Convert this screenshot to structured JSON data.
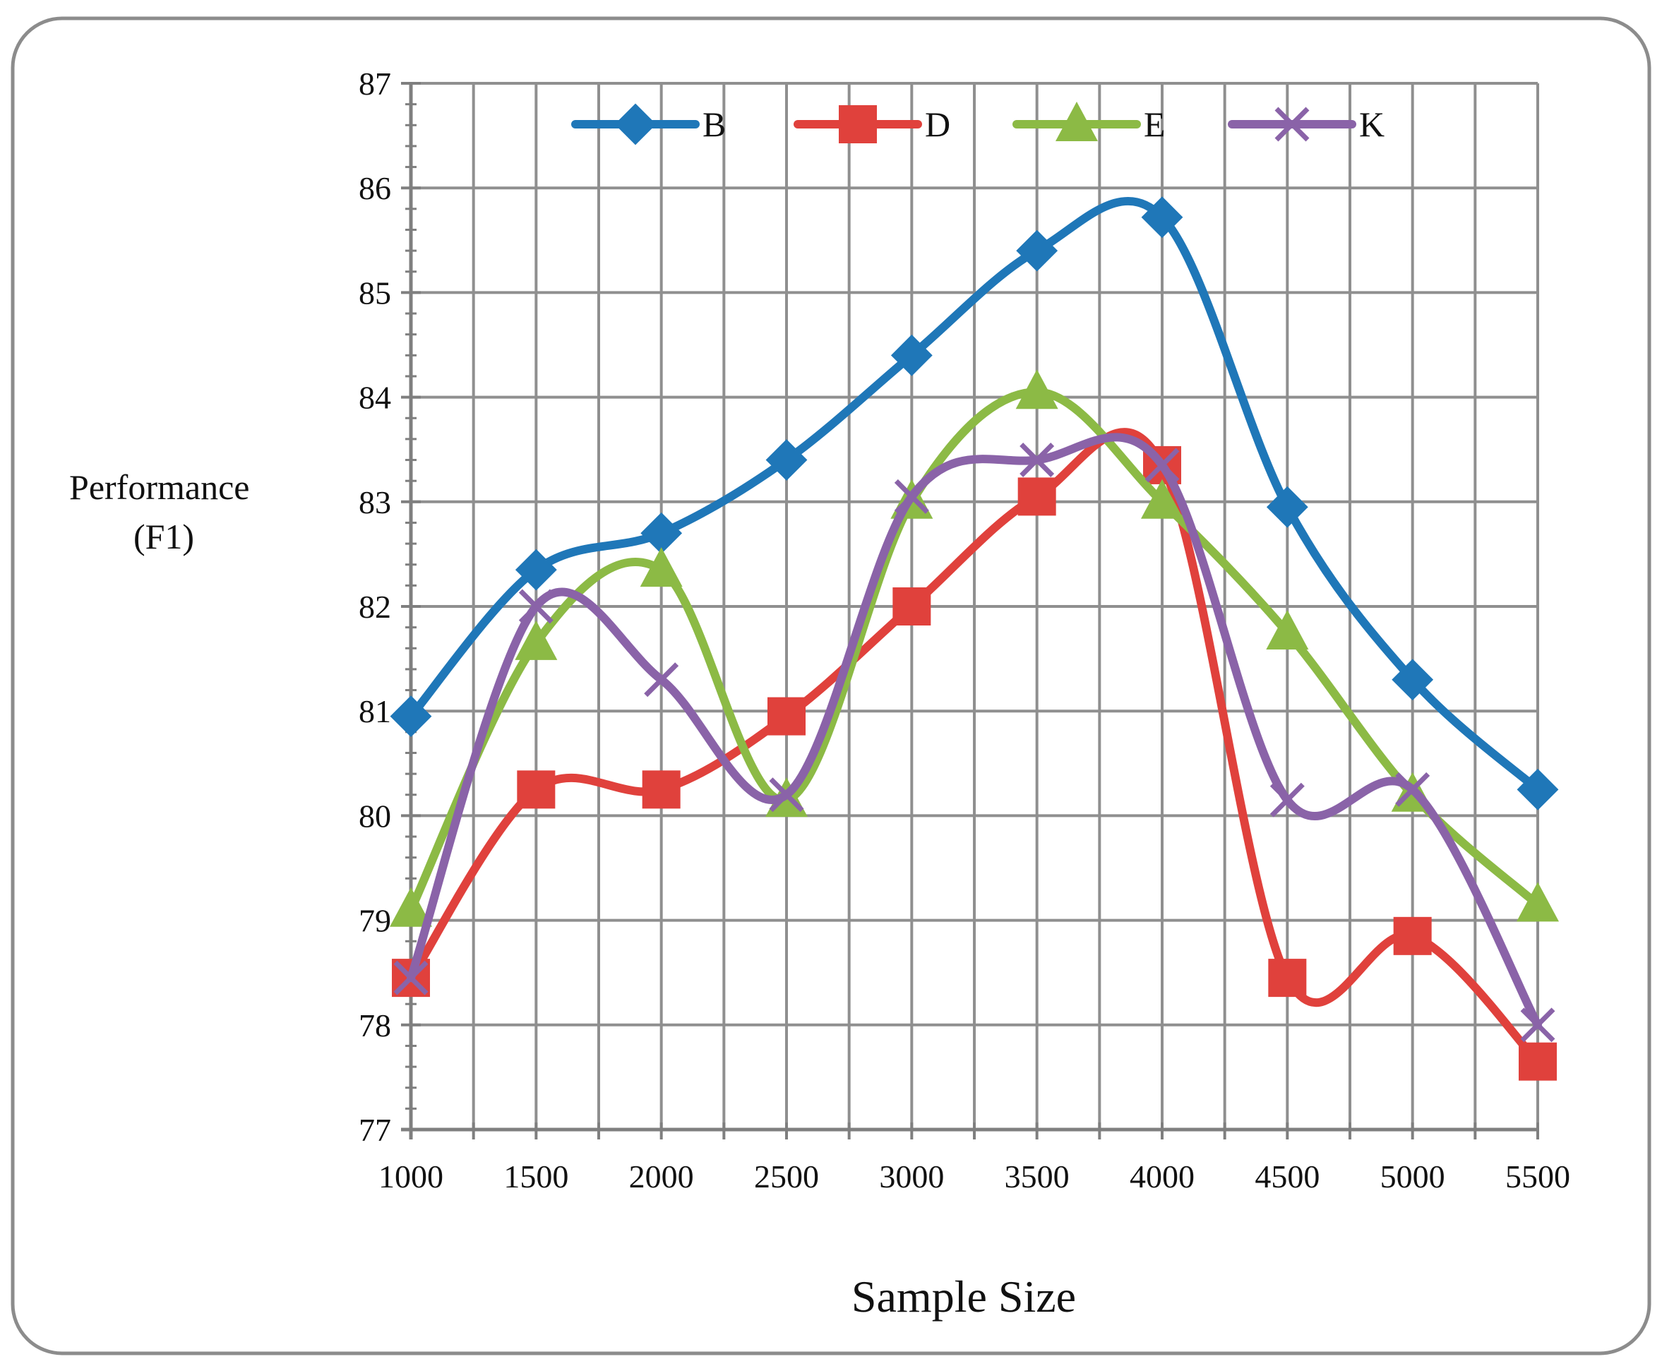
{
  "chart_data": {
    "type": "line",
    "smooth": true,
    "title": "",
    "xlabel": "Sample Size",
    "ylabel_lines": [
      "Performance",
      "(F1)"
    ],
    "x": [
      1000,
      1500,
      2000,
      2500,
      3000,
      3500,
      4000,
      4500,
      5000,
      5500
    ],
    "xlim": [
      1000,
      5500
    ],
    "ylim": [
      77,
      87
    ],
    "yticks": [
      77,
      78,
      79,
      80,
      81,
      82,
      83,
      84,
      85,
      86,
      87
    ],
    "x_tick_labels": [
      "1000",
      "1500",
      "2000",
      "2500",
      "3000",
      "3500",
      "4000",
      "4500",
      "5000",
      "5500"
    ],
    "y_tick_labels": [
      "77",
      "78",
      "79",
      "80",
      "81",
      "82",
      "83",
      "84",
      "85",
      "86",
      "87"
    ],
    "grid": true,
    "legend_position": "top-center",
    "series": [
      {
        "name": "B",
        "color": "#1f77b8",
        "marker": "diamond",
        "values": [
          80.95,
          82.35,
          82.7,
          83.4,
          84.4,
          85.4,
          85.72,
          82.95,
          81.3,
          80.25
        ]
      },
      {
        "name": "D",
        "color": "#e0413c",
        "marker": "square",
        "values": [
          78.45,
          80.25,
          80.25,
          80.95,
          82.0,
          83.05,
          83.35,
          78.45,
          78.85,
          77.65
        ]
      },
      {
        "name": "E",
        "color": "#8cba45",
        "marker": "triangle",
        "values": [
          79.1,
          81.65,
          82.35,
          80.15,
          83.0,
          84.05,
          83.0,
          81.75,
          80.2,
          79.15
        ]
      },
      {
        "name": "K",
        "color": "#8a63a8",
        "marker": "x",
        "values": [
          78.45,
          82.0,
          81.3,
          80.2,
          83.05,
          83.4,
          83.35,
          80.15,
          80.25,
          78.0
        ]
      }
    ]
  }
}
